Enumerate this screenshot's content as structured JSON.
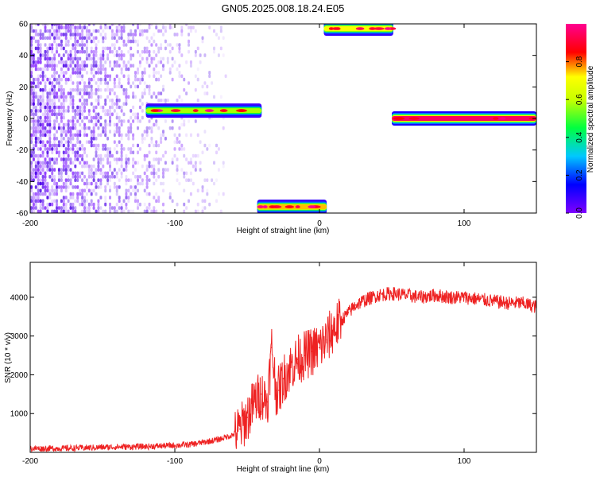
{
  "title": "GN05.2025.008.18.24.E05",
  "chart_data": [
    {
      "type": "heatmap",
      "xlabel": "Height of straight line (km)",
      "ylabel": "Frequency (Hz)",
      "xlim": [
        -200,
        150
      ],
      "ylim": [
        -60,
        60
      ],
      "xticks": [
        -200,
        -100,
        0,
        100
      ],
      "yticks": [
        -60,
        -40,
        -20,
        0,
        20,
        40,
        60
      ],
      "grid": false,
      "colorbar": {
        "label": "Normalized spectral amplitude",
        "range": [
          0,
          1
        ],
        "ticks": [
          0.0,
          0.2,
          0.4,
          0.6,
          0.8
        ],
        "colormap": [
          "#7f00ff",
          "#0000ff",
          "#00c8ff",
          "#00ff00",
          "#c8ff00",
          "#ffff00",
          "#ff0000",
          "#ff0090"
        ]
      },
      "features": [
        {
          "kind": "noise",
          "x_range": [
            -200,
            -65
          ],
          "y_range": [
            -60,
            60
          ],
          "amplitude": 0.15
        },
        {
          "kind": "band",
          "x_range": [
            -120,
            -40
          ],
          "frequency_hz": 5,
          "amplitude": 0.55
        },
        {
          "kind": "band",
          "x_range": [
            -43,
            5
          ],
          "frequency_hz": -56,
          "amplitude": 0.75
        },
        {
          "kind": "band",
          "x_range": [
            3,
            51
          ],
          "frequency_hz": 57,
          "amplitude": 0.7
        },
        {
          "kind": "band",
          "x_range": [
            50,
            150
          ],
          "frequency_hz": 0,
          "amplitude": 0.95
        }
      ]
    },
    {
      "type": "line",
      "xlabel": "Height of straight line (km)",
      "ylabel": "SNR (10 * v/v)",
      "xlim": [
        -200,
        150
      ],
      "ylim": [
        0,
        4900
      ],
      "xticks": [
        -200,
        -100,
        0,
        100
      ],
      "yticks": [
        1000,
        2000,
        3000,
        4000
      ],
      "grid": false,
      "series": [
        {
          "color": "#ee2222",
          "x": [
            -200,
            -180,
            -160,
            -140,
            -120,
            -100,
            -90,
            -80,
            -70,
            -60,
            -55,
            -50,
            -45,
            -40,
            -36,
            -33,
            -30,
            -28,
            -25,
            -20,
            -15,
            -10,
            -5,
            0,
            5,
            10,
            15,
            20,
            25,
            30,
            40,
            50,
            60,
            70,
            80,
            90,
            100,
            110,
            120,
            130,
            140,
            150
          ],
          "values": [
            100,
            100,
            120,
            140,
            150,
            180,
            200,
            260,
            330,
            450,
            600,
            900,
            1300,
            1500,
            1300,
            2700,
            1600,
            1600,
            1900,
            2200,
            2400,
            2500,
            2600,
            2700,
            2900,
            3200,
            3400,
            3600,
            3800,
            3900,
            4050,
            4100,
            4050,
            4000,
            4050,
            4000,
            4000,
            3950,
            3900,
            3850,
            3850,
            3750
          ]
        }
      ]
    }
  ]
}
